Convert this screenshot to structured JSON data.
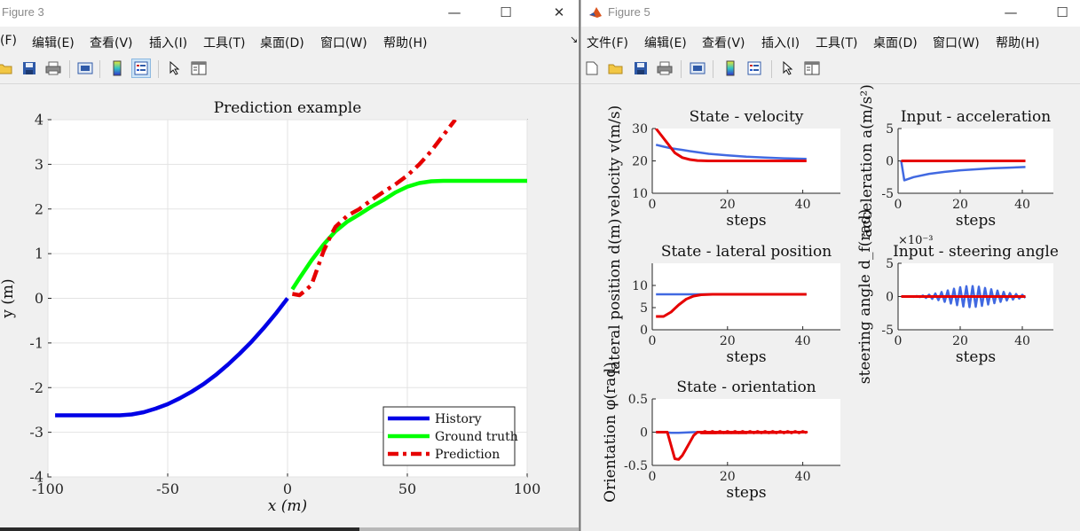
{
  "fig3": {
    "title": "Figure 3",
    "menu": [
      "(F)",
      "编辑(E)",
      "查看(V)",
      "插入(I)",
      "工具(T)",
      "桌面(D)",
      "窗口(W)",
      "帮助(H)"
    ],
    "arrow_mark": "↘",
    "toolbar_icons": [
      "open-folder-icon",
      "save-icon",
      "print-icon",
      "print-preview-icon",
      "colorbar-icon",
      "legend-icon",
      "pointer-icon",
      "property-editor-icon"
    ]
  },
  "fig5": {
    "title": "Figure 5",
    "menu": [
      "文件(F)",
      "编辑(E)",
      "查看(V)",
      "插入(I)",
      "工具(T)",
      "桌面(D)",
      "窗口(W)",
      "帮助(H)"
    ],
    "toolbar_icons": [
      "new-file-icon",
      "open-folder-icon",
      "save-icon",
      "print-icon",
      "print-preview-icon",
      "colorbar-icon",
      "legend-icon",
      "pointer-icon",
      "property-editor-icon"
    ]
  },
  "window_controls": {
    "minimize": "—",
    "maximize": "☐",
    "close": "✕"
  },
  "colors": {
    "history": "#0000e6",
    "ground_truth": "#00ff00",
    "prediction": "#e60000",
    "state_line": "#4169e1",
    "ref_line": "#e60000"
  },
  "chart_data": [
    {
      "id": "prediction",
      "type": "line",
      "title": "Prediction example",
      "xlabel": "x (m)",
      "ylabel": "y (m)",
      "xlim": [
        -100,
        100
      ],
      "ylim": [
        -4,
        4
      ],
      "xticks": [
        "-100",
        "-50",
        "0",
        "50",
        "100"
      ],
      "yticks": [
        "4",
        "3",
        "2",
        "1",
        "0",
        "-1",
        "-2",
        "-3",
        "-4"
      ],
      "grid": true,
      "legend": "bottom-right",
      "series": [
        {
          "name": "History",
          "color": "#0000e6",
          "style": "solid",
          "x": [
            -97,
            -70,
            -65,
            -60,
            -55,
            -50,
            -45,
            -40,
            -35,
            -30,
            -25,
            -20,
            -15,
            -10,
            -5,
            0
          ],
          "y": [
            -2.62,
            -2.62,
            -2.6,
            -2.55,
            -2.47,
            -2.37,
            -2.24,
            -2.09,
            -1.92,
            -1.72,
            -1.49,
            -1.24,
            -0.97,
            -0.67,
            -0.35,
            0
          ]
        },
        {
          "name": "Ground truth",
          "color": "#00ff00",
          "style": "solid",
          "x": [
            2,
            5,
            10,
            15,
            20,
            25,
            30,
            35,
            40,
            45,
            50,
            55,
            60,
            65,
            68,
            80,
            100
          ],
          "y": [
            0.2,
            0.45,
            0.85,
            1.2,
            1.5,
            1.72,
            1.88,
            2.05,
            2.2,
            2.37,
            2.5,
            2.58,
            2.62,
            2.63,
            2.63,
            2.63,
            2.63
          ]
        },
        {
          "name": "Prediction",
          "color": "#e60000",
          "style": "dashed",
          "x": [
            2,
            5,
            8,
            10,
            12,
            15,
            18,
            20,
            25,
            30,
            35,
            40,
            45,
            50,
            55,
            60,
            65,
            70
          ],
          "y": [
            0.1,
            0.07,
            0.2,
            0.3,
            0.6,
            1.05,
            1.4,
            1.6,
            1.85,
            2.0,
            2.2,
            2.38,
            2.55,
            2.75,
            3.0,
            3.3,
            3.65,
            4.0
          ]
        }
      ]
    },
    {
      "id": "velocity",
      "type": "line",
      "title": "State - velocity",
      "xlabel": "steps",
      "ylabel": "velocity v(m/s)",
      "xlim": [
        0,
        50
      ],
      "ylim": [
        10,
        30
      ],
      "xticks": [
        "0",
        "20",
        "40"
      ],
      "yticks": [
        "30",
        "20",
        "10"
      ],
      "series": [
        {
          "color": "#4169e1",
          "x": [
            1,
            3,
            5,
            8,
            10,
            15,
            20,
            25,
            30,
            35,
            41
          ],
          "y": [
            25,
            24.4,
            23.9,
            23.4,
            23.0,
            22.2,
            21.7,
            21.3,
            21.0,
            20.8,
            20.6
          ]
        },
        {
          "color": "#e60000",
          "x": [
            1,
            2,
            4,
            6,
            8,
            10,
            12,
            15,
            20,
            30,
            41
          ],
          "y": [
            30,
            28.5,
            25.5,
            22.5,
            21,
            20.4,
            20.1,
            20,
            20,
            20,
            20
          ]
        }
      ]
    },
    {
      "id": "acceleration",
      "type": "line",
      "title": "Input - acceleration",
      "xlabel": "steps",
      "ylabel": "acceleration a(m/s²)",
      "xlim": [
        0,
        50
      ],
      "ylim": [
        -5,
        5
      ],
      "xticks": [
        "0",
        "20",
        "40"
      ],
      "yticks": [
        "5",
        "0",
        "-5"
      ],
      "series": [
        {
          "color": "#4169e1",
          "x": [
            1,
            2,
            5,
            10,
            15,
            20,
            25,
            30,
            35,
            41
          ],
          "y": [
            0,
            -3.0,
            -2.5,
            -2.0,
            -1.7,
            -1.45,
            -1.3,
            -1.15,
            -1.05,
            -0.95
          ]
        },
        {
          "color": "#e60000",
          "x": [
            1,
            41
          ],
          "y": [
            0,
            0
          ]
        }
      ]
    },
    {
      "id": "lateral",
      "type": "line",
      "title": "State - lateral position",
      "xlabel": "steps",
      "ylabel": "lateral position d(m)",
      "xlim": [
        0,
        50
      ],
      "ylim": [
        0,
        15
      ],
      "xticks": [
        "0",
        "20",
        "40"
      ],
      "yticks": [
        "10",
        "5",
        "0"
      ],
      "series": [
        {
          "color": "#4169e1",
          "x": [
            1,
            41
          ],
          "y": [
            8,
            8
          ]
        },
        {
          "color": "#e60000",
          "x": [
            1,
            3,
            5,
            7,
            9,
            11,
            13,
            16,
            20,
            41
          ],
          "y": [
            3,
            3,
            4,
            5.6,
            6.9,
            7.6,
            7.9,
            8,
            8,
            8
          ]
        }
      ]
    },
    {
      "id": "steering",
      "type": "line",
      "title": "Input - steering angle",
      "xlabel": "steps",
      "ylabel": "steering angle d_f(rad)",
      "exponent": "×10⁻³",
      "xlim": [
        0,
        50
      ],
      "ylim": [
        -5,
        5
      ],
      "xticks": [
        "0",
        "20",
        "40"
      ],
      "yticks": [
        "5",
        "0",
        "-5"
      ],
      "series": [
        {
          "color": "#4169e1",
          "oscillation": true,
          "x": [
            1,
            3,
            5,
            7,
            9,
            11,
            13,
            15,
            17,
            19,
            21,
            23,
            25,
            27,
            29,
            31,
            33,
            35,
            37,
            39,
            41
          ],
          "y": [
            0,
            0,
            0.05,
            0.08,
            0.2,
            0.35,
            0.55,
            0.8,
            1.05,
            1.3,
            1.5,
            1.6,
            1.55,
            1.4,
            1.2,
            1.0,
            0.8,
            0.6,
            0.45,
            0.3,
            0.2
          ]
        },
        {
          "color": "#e60000",
          "x": [
            1,
            41
          ],
          "y": [
            0,
            0
          ]
        }
      ]
    },
    {
      "id": "orientation",
      "type": "line",
      "title": "State - orientation",
      "xlabel": "steps",
      "ylabel": "Orientation φ(rad)",
      "xlim": [
        0,
        50
      ],
      "ylim": [
        -0.5,
        0.5
      ],
      "xticks": [
        "0",
        "20",
        "40"
      ],
      "yticks": [
        "0.5",
        "0",
        "-0.5"
      ],
      "series": [
        {
          "color": "#4169e1",
          "x": [
            1,
            3,
            5,
            7,
            9,
            11,
            41
          ],
          "y": [
            0,
            0,
            -0.01,
            -0.01,
            -0.005,
            0,
            0
          ]
        },
        {
          "color": "#e60000",
          "ripple": true,
          "x": [
            1,
            4,
            5,
            6,
            7,
            8,
            9,
            10,
            11,
            12,
            41
          ],
          "y": [
            0,
            0,
            -0.2,
            -0.4,
            -0.41,
            -0.35,
            -0.25,
            -0.15,
            -0.05,
            0,
            0
          ]
        }
      ]
    }
  ]
}
